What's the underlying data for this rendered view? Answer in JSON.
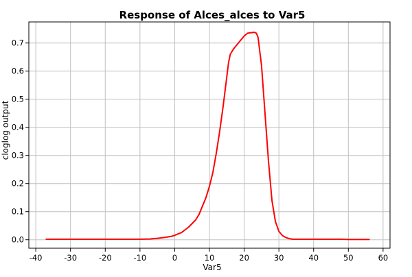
{
  "chart_data": {
    "type": "line",
    "title": "Response of Alces_alces to Var5",
    "xlabel": "Var5",
    "ylabel": "cloglog output",
    "xlim": [
      -42,
      62
    ],
    "ylim": [
      -0.03,
      0.775
    ],
    "x_ticks": [
      -40,
      -30,
      -20,
      -10,
      0,
      10,
      20,
      30,
      40,
      50,
      60
    ],
    "y_ticks": [
      0.0,
      0.1,
      0.2,
      0.3,
      0.4,
      0.5,
      0.6,
      0.7
    ],
    "x_tick_labels": [
      "-40",
      "-30",
      "-20",
      "-10",
      "0",
      "10",
      "20",
      "30",
      "40",
      "50",
      "60"
    ],
    "y_tick_labels": [
      "0.0",
      "0.1",
      "0.2",
      "0.3",
      "0.4",
      "0.5",
      "0.6",
      "0.7"
    ],
    "grid": true,
    "colors": {
      "line": "#ff0000",
      "grid": "#c0c0c0",
      "axis": "#000000"
    },
    "series": [
      {
        "x": [
          -37,
          -30,
          -20,
          -10,
          -7,
          -5,
          -3,
          -1,
          0,
          2,
          4,
          6,
          7,
          8,
          9,
          10,
          11,
          12,
          13,
          14,
          15,
          15.5,
          16,
          17,
          18,
          19,
          20,
          21,
          22,
          23,
          23.5,
          24,
          25,
          26,
          27,
          28,
          29,
          30,
          31,
          32,
          33,
          34,
          35,
          40,
          48,
          50,
          56
        ],
        "y": [
          0.002,
          0.002,
          0.002,
          0.002,
          0.003,
          0.005,
          0.008,
          0.012,
          0.016,
          0.026,
          0.045,
          0.07,
          0.09,
          0.12,
          0.15,
          0.19,
          0.24,
          0.31,
          0.39,
          0.48,
          0.58,
          0.63,
          0.66,
          0.68,
          0.695,
          0.71,
          0.725,
          0.735,
          0.737,
          0.738,
          0.735,
          0.72,
          0.62,
          0.45,
          0.28,
          0.14,
          0.065,
          0.03,
          0.015,
          0.008,
          0.004,
          0.002,
          0.002,
          0.002,
          0.002,
          0.001,
          0.001
        ]
      }
    ]
  }
}
